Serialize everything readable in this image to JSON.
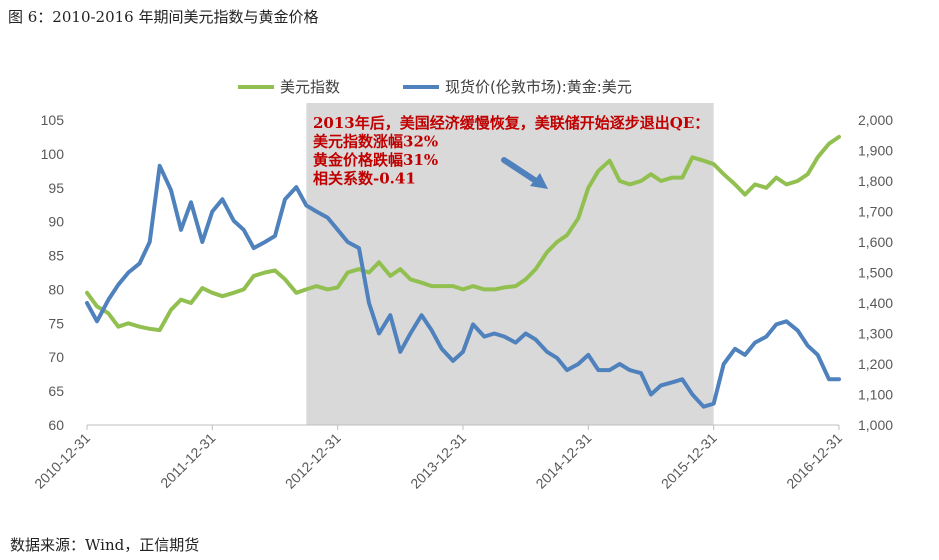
{
  "figure": {
    "title": "图 6：2010-2016 年期间美元指数与黄金价格",
    "source": "数据来源：Wind，正信期货"
  },
  "annotation": {
    "lines": [
      "2013年后，美国经济缓慢恢复，美联储开始逐步退出QE：",
      "美元指数涨幅32%",
      "黄金价格跌幅31%",
      "相关系数-0.41"
    ],
    "color": "#c00000"
  },
  "chart_data": {
    "type": "line",
    "legend_position": "top",
    "grid": false,
    "x_tick_labels": [
      "2010-12-31",
      "2011-12-31",
      "2012-12-31",
      "2013-12-31",
      "2014-12-31",
      "2015-12-31",
      "2016-12-31"
    ],
    "x_range": [
      2011.0,
      2017.0
    ],
    "y_left": {
      "ylim": [
        60,
        105
      ],
      "ticks": [
        "60",
        "65",
        "70",
        "75",
        "80",
        "85",
        "90",
        "95",
        "100",
        "105"
      ]
    },
    "y_right": {
      "ylim": [
        1000,
        2000
      ],
      "ticks": [
        "1,000",
        "1,100",
        "1,200",
        "1,300",
        "1,400",
        "1,500",
        "1,600",
        "1,700",
        "1,800",
        "1,900",
        "2,000"
      ]
    },
    "shaded_region": {
      "x": [
        2012.75,
        2016.0
      ],
      "color": "#d9d9d9"
    },
    "series": [
      {
        "name": "美元指数",
        "axis": "left",
        "color": "#92c050",
        "x": [
          2011.0,
          2011.08,
          2011.17,
          2011.25,
          2011.33,
          2011.42,
          2011.5,
          2011.58,
          2011.67,
          2011.75,
          2011.83,
          2011.92,
          2012.0,
          2012.08,
          2012.17,
          2012.25,
          2012.33,
          2012.42,
          2012.5,
          2012.58,
          2012.67,
          2012.75,
          2012.83,
          2012.92,
          2013.0,
          2013.08,
          2013.17,
          2013.25,
          2013.33,
          2013.42,
          2013.5,
          2013.58,
          2013.67,
          2013.75,
          2013.83,
          2013.92,
          2014.0,
          2014.08,
          2014.17,
          2014.25,
          2014.33,
          2014.42,
          2014.5,
          2014.58,
          2014.67,
          2014.75,
          2014.83,
          2014.92,
          2015.0,
          2015.08,
          2015.17,
          2015.25,
          2015.33,
          2015.42,
          2015.5,
          2015.58,
          2015.67,
          2015.75,
          2015.83,
          2015.92,
          2016.0,
          2016.08,
          2016.17,
          2016.25,
          2016.33,
          2016.42,
          2016.5,
          2016.58,
          2016.67,
          2016.75,
          2016.83,
          2016.92,
          2017.0
        ],
        "values": [
          79.5,
          77.5,
          76.5,
          74.5,
          75.0,
          74.5,
          74.2,
          74.0,
          77.0,
          78.5,
          78.0,
          80.2,
          79.5,
          79.0,
          79.5,
          80.0,
          82.0,
          82.5,
          82.8,
          81.5,
          79.5,
          80.0,
          80.5,
          80.0,
          80.3,
          82.5,
          83.0,
          82.5,
          84.0,
          82.0,
          83.0,
          81.5,
          81.0,
          80.5,
          80.5,
          80.5,
          80.0,
          80.5,
          80.0,
          80.0,
          80.3,
          80.5,
          81.5,
          83.0,
          85.5,
          87.0,
          88.0,
          90.5,
          95.0,
          97.5,
          99.0,
          96.0,
          95.5,
          96.0,
          97.0,
          96.0,
          96.5,
          96.5,
          99.5,
          99.0,
          98.5,
          97.0,
          95.5,
          94.0,
          95.5,
          95.0,
          96.5,
          95.5,
          96.0,
          97.0,
          99.5,
          101.5,
          102.5
        ]
      },
      {
        "name": "现货价(伦敦市场):黄金:美元",
        "axis": "right",
        "color": "#4f81bd",
        "x": [
          2011.0,
          2011.08,
          2011.17,
          2011.25,
          2011.33,
          2011.42,
          2011.5,
          2011.58,
          2011.67,
          2011.75,
          2011.83,
          2011.92,
          2012.0,
          2012.08,
          2012.17,
          2012.25,
          2012.33,
          2012.42,
          2012.5,
          2012.58,
          2012.67,
          2012.75,
          2012.83,
          2012.92,
          2013.0,
          2013.08,
          2013.17,
          2013.25,
          2013.33,
          2013.42,
          2013.5,
          2013.58,
          2013.67,
          2013.75,
          2013.83,
          2013.92,
          2014.0,
          2014.08,
          2014.17,
          2014.25,
          2014.33,
          2014.42,
          2014.5,
          2014.58,
          2014.67,
          2014.75,
          2014.83,
          2014.92,
          2015.0,
          2015.08,
          2015.17,
          2015.25,
          2015.33,
          2015.42,
          2015.5,
          2015.58,
          2015.67,
          2015.75,
          2015.83,
          2015.92,
          2016.0,
          2016.08,
          2016.17,
          2016.25,
          2016.33,
          2016.42,
          2016.5,
          2016.58,
          2016.67,
          2016.75,
          2016.83,
          2016.92,
          2017.0
        ],
        "values": [
          1400,
          1340,
          1410,
          1460,
          1500,
          1530,
          1600,
          1850,
          1770,
          1640,
          1730,
          1600,
          1700,
          1740,
          1670,
          1640,
          1580,
          1600,
          1620,
          1740,
          1780,
          1720,
          1700,
          1680,
          1640,
          1600,
          1580,
          1400,
          1300,
          1360,
          1240,
          1300,
          1360,
          1310,
          1250,
          1210,
          1240,
          1330,
          1290,
          1300,
          1290,
          1270,
          1300,
          1280,
          1240,
          1220,
          1180,
          1200,
          1230,
          1180,
          1180,
          1200,
          1180,
          1170,
          1100,
          1130,
          1140,
          1150,
          1100,
          1060,
          1070,
          1200,
          1250,
          1230,
          1270,
          1290,
          1330,
          1340,
          1310,
          1260,
          1230,
          1150,
          1150
        ]
      }
    ]
  }
}
